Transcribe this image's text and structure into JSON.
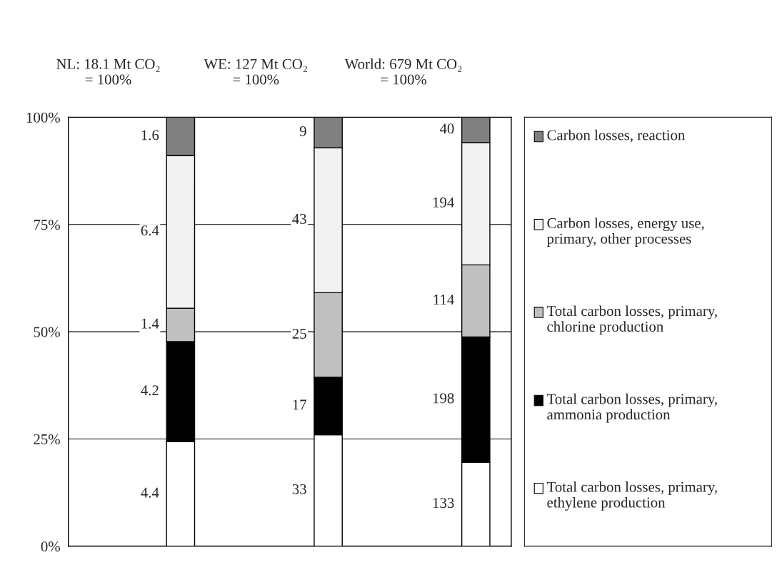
{
  "chart_data": {
    "type": "bar",
    "stacked": true,
    "categories": [
      "NL: 18.1 Mt CO₂\n= 100%",
      "WE: 127 Mt CO₂\n= 100%",
      "World: 679 Mt CO₂\n= 100%"
    ],
    "series": [
      {
        "name": "Total carbon losses, primary, ethylene production",
        "color": "#ffffff",
        "values": [
          24.4,
          26.0,
          19.6
        ]
      },
      {
        "name": "Total carbon losses, primary, ammonia production",
        "color": "#000000",
        "values": [
          23.3,
          13.4,
          29.2
        ]
      },
      {
        "name": "Total carbon losses, primary, chlorine production",
        "color": "#c0c0c0",
        "values": [
          7.8,
          19.7,
          16.8
        ]
      },
      {
        "name": "Carbon losses, energy use, primary, other processes",
        "color": "#f2f2f2",
        "values": [
          35.6,
          33.8,
          28.5
        ]
      },
      {
        "name": "Carbon losses, reaction",
        "color": "#808080",
        "values": [
          8.9,
          7.1,
          5.9
        ]
      }
    ],
    "annotations": [
      "4.4",
      "4.2",
      "1.4",
      "6.4",
      "1.6",
      "33",
      "17",
      "25",
      "43",
      "9",
      "133",
      "198",
      "114",
      "194",
      "40"
    ],
    "ylim": [
      0,
      100
    ],
    "yticks": [
      {
        "value": 0,
        "label": "0%"
      },
      {
        "value": 25,
        "label": "25%"
      },
      {
        "value": 50,
        "label": "50%"
      },
      {
        "value": 75,
        "label": "75%"
      },
      {
        "value": 100,
        "label": "100%"
      }
    ],
    "grid": "y",
    "legend": "right"
  }
}
